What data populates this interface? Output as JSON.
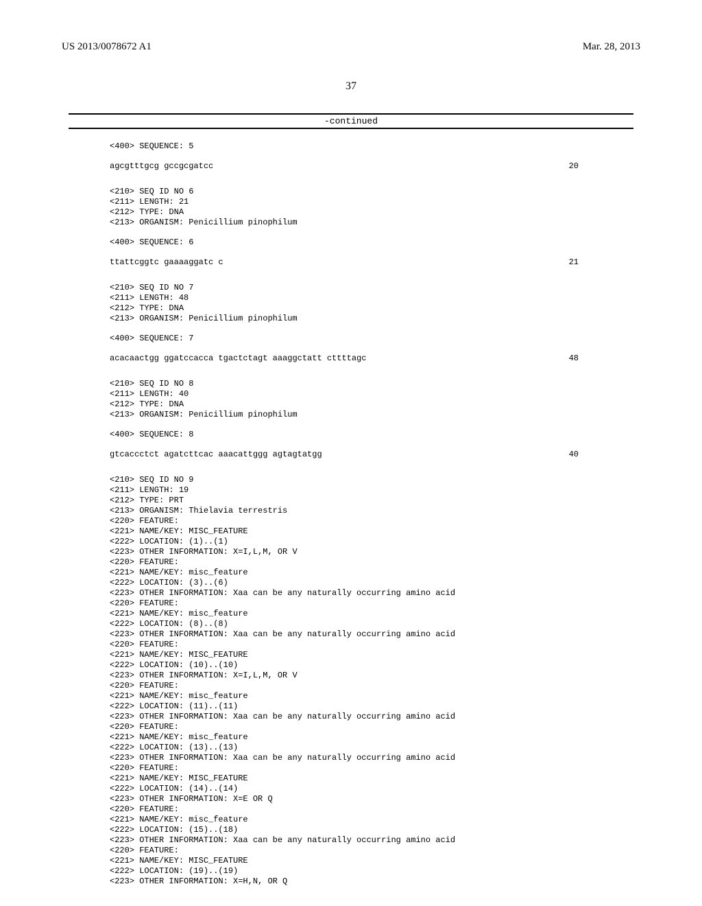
{
  "header": {
    "publication_number": "US 2013/0078672 A1",
    "publication_date": "Mar. 28, 2013"
  },
  "page_number": "37",
  "continued_label": "-continued",
  "blocks": [
    {
      "lines": [
        "<400> SEQUENCE: 5"
      ]
    },
    {
      "sequence": "agcgtttgcg gccgcgatcc",
      "number": "20"
    },
    {
      "lines": [
        "<210> SEQ ID NO 6",
        "<211> LENGTH: 21",
        "<212> TYPE: DNA",
        "<213> ORGANISM: Penicillium pinophilum"
      ]
    },
    {
      "lines": [
        "<400> SEQUENCE: 6"
      ]
    },
    {
      "sequence": "ttattcggtc gaaaaggatc c",
      "number": "21"
    },
    {
      "lines": [
        "<210> SEQ ID NO 7",
        "<211> LENGTH: 48",
        "<212> TYPE: DNA",
        "<213> ORGANISM: Penicillium pinophilum"
      ]
    },
    {
      "lines": [
        "<400> SEQUENCE: 7"
      ]
    },
    {
      "sequence": "acacaactgg ggatccacca tgactctagt aaaggctatt cttttagc",
      "number": "48"
    },
    {
      "lines": [
        "<210> SEQ ID NO 8",
        "<211> LENGTH: 40",
        "<212> TYPE: DNA",
        "<213> ORGANISM: Penicillium pinophilum"
      ]
    },
    {
      "lines": [
        "<400> SEQUENCE: 8"
      ]
    },
    {
      "sequence": "gtcaccctct agatcttcac aaacattggg agtagtatgg",
      "number": "40"
    },
    {
      "lines": [
        "<210> SEQ ID NO 9",
        "<211> LENGTH: 19",
        "<212> TYPE: PRT",
        "<213> ORGANISM: Thielavia terrestris",
        "<220> FEATURE:",
        "<221> NAME/KEY: MISC_FEATURE",
        "<222> LOCATION: (1)..(1)",
        "<223> OTHER INFORMATION: X=I,L,M, OR V",
        "<220> FEATURE:",
        "<221> NAME/KEY: misc_feature",
        "<222> LOCATION: (3)..(6)",
        "<223> OTHER INFORMATION: Xaa can be any naturally occurring amino acid",
        "<220> FEATURE:",
        "<221> NAME/KEY: misc_feature",
        "<222> LOCATION: (8)..(8)",
        "<223> OTHER INFORMATION: Xaa can be any naturally occurring amino acid",
        "<220> FEATURE:",
        "<221> NAME/KEY: MISC_FEATURE",
        "<222> LOCATION: (10)..(10)",
        "<223> OTHER INFORMATION: X=I,L,M, OR V",
        "<220> FEATURE:",
        "<221> NAME/KEY: misc_feature",
        "<222> LOCATION: (11)..(11)",
        "<223> OTHER INFORMATION: Xaa can be any naturally occurring amino acid",
        "<220> FEATURE:",
        "<221> NAME/KEY: misc_feature",
        "<222> LOCATION: (13)..(13)",
        "<223> OTHER INFORMATION: Xaa can be any naturally occurring amino acid",
        "<220> FEATURE:",
        "<221> NAME/KEY: MISC_FEATURE",
        "<222> LOCATION: (14)..(14)",
        "<223> OTHER INFORMATION: X=E OR Q",
        "<220> FEATURE:",
        "<221> NAME/KEY: misc_feature",
        "<222> LOCATION: (15)..(18)",
        "<223> OTHER INFORMATION: Xaa can be any naturally occurring amino acid",
        "<220> FEATURE:",
        "<221> NAME/KEY: MISC_FEATURE",
        "<222> LOCATION: (19)..(19)",
        "<223> OTHER INFORMATION: X=H,N, OR Q"
      ]
    }
  ]
}
